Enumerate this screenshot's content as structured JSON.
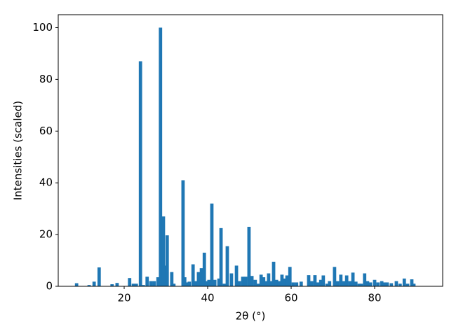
{
  "chart_data": {
    "type": "bar",
    "xlabel": "2θ (°)",
    "ylabel": "Intensities (scaled)",
    "color": "#1f77b4",
    "x": [
      8.6,
      11.6,
      12.8,
      14.0,
      17.1,
      18.3,
      21.3,
      22.2,
      22.9,
      23.9,
      24.6,
      25.5,
      26.4,
      27.2,
      28.1,
      28.7,
      29.4,
      29.7,
      30.3,
      31.4,
      31.9,
      34.1,
      34.5,
      35.1,
      35.6,
      36.5,
      37.1,
      37.8,
      38.5,
      39.2,
      39.7,
      40.3,
      41.0,
      41.7,
      42.7,
      43.2,
      44.0,
      44.7,
      45.7,
      46.9,
      47.6,
      48.4,
      49.1,
      49.9,
      50.6,
      51.4,
      52.1,
      52.8,
      53.4,
      54.1,
      54.6,
      55.1,
      55.8,
      56.5,
      57.1,
      57.8,
      58.5,
      59.0,
      59.7,
      60.5,
      61.3,
      62.4,
      64.2,
      64.9,
      65.7,
      66.4,
      67.1,
      67.7,
      68.6,
      69.2,
      70.4,
      71.1,
      71.9,
      72.6,
      73.3,
      74.1,
      74.8,
      75.5,
      76.3,
      76.8,
      77.6,
      78.3,
      79.0,
      80.0,
      80.8,
      81.7,
      82.4,
      83.0,
      84.0,
      85.2,
      86.1,
      87.1,
      87.9,
      88.9,
      89.4
    ],
    "values": [
      1.2,
      0.5,
      1.8,
      7.3,
      0.8,
      1.3,
      3.2,
      1,
      1,
      87,
      0.5,
      3.7,
      2,
      2,
      3.5,
      100,
      27,
      8,
      19.7,
      5.5,
      1,
      41,
      3.5,
      1.5,
      1.8,
      8.5,
      2,
      5.5,
      7,
      13,
      2,
      2.5,
      32,
      2.5,
      3,
      22.5,
      1,
      15.5,
      5,
      8,
      2,
      3.7,
      3.7,
      23,
      4,
      2.5,
      1,
      4.5,
      3.5,
      2,
      5,
      2,
      9.5,
      2.5,
      2,
      4.5,
      3,
      4.2,
      7.5,
      1.5,
      1.5,
      1.8,
      4.3,
      2,
      4.3,
      1.5,
      2.5,
      4.2,
      1,
      2,
      7.5,
      2,
      4.5,
      2,
      4.2,
      2,
      5.3,
      1.8,
      1,
      1,
      5,
      2,
      1.5,
      2.5,
      1.5,
      2,
      1.5,
      1.5,
      1.2,
      2,
      1,
      3,
      1,
      2.7,
      1
    ],
    "xlim": [
      4.2,
      96.3
    ],
    "ylim": [
      0,
      105
    ],
    "xticks": [
      20,
      40,
      60,
      80
    ],
    "yticks": [
      0,
      20,
      40,
      60,
      80,
      100
    ]
  }
}
